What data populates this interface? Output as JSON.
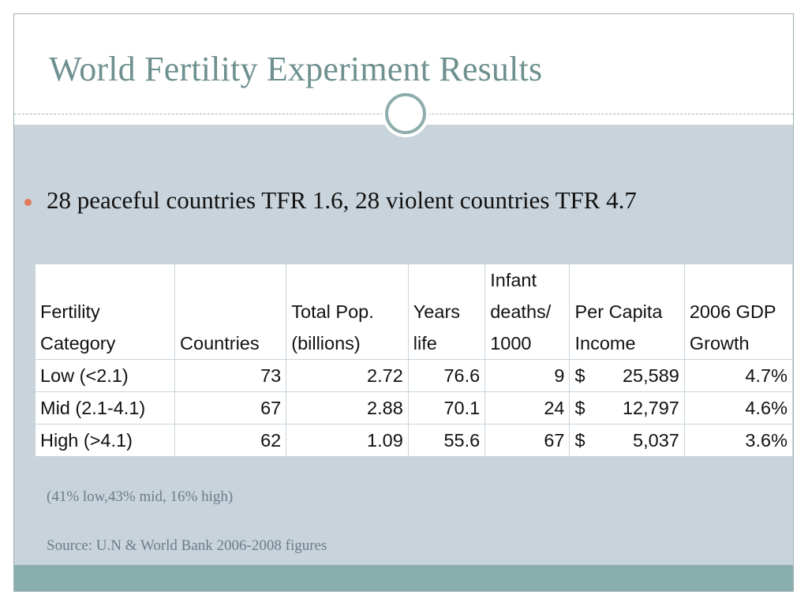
{
  "slide": {
    "title": "World Fertility Experiment Results",
    "bullet": "28 peaceful countries  TFR 1.6, 28 violent countries TFR 4.7",
    "note": "(41% low,43% mid, 16% high)",
    "source": "Source: U.N & World Bank 2006-2008 figures",
    "colors": {
      "title": "#6f9090",
      "content_background": "#c8d3db",
      "footer_band": "#8aadad",
      "bullet_dot": "#e07a5a"
    }
  },
  "table": {
    "headers": [
      [
        "Fertility",
        "Category"
      ],
      [
        "Countries"
      ],
      [
        "Total Pop.",
        "(billions)"
      ],
      [
        "Years",
        "life"
      ],
      [
        "Infant",
        "deaths/",
        "1000"
      ],
      [
        "Per Capita",
        "Income"
      ],
      [
        "2006 GDP",
        "Growth"
      ]
    ],
    "rows": [
      {
        "category": "Low (<2.1)",
        "countries": "73",
        "population": "2.72",
        "years_life": "76.6",
        "infant_deaths": "9",
        "currency": "$",
        "income": "25,589",
        "gdp_growth": "4.7%"
      },
      {
        "category": "Mid (2.1-4.1)",
        "countries": "67",
        "population": "2.88",
        "years_life": "70.1",
        "infant_deaths": "24",
        "currency": "$",
        "income": "12,797",
        "gdp_growth": "4.6%"
      },
      {
        "category": "High (>4.1)",
        "countries": "62",
        "population": "1.09",
        "years_life": "55.6",
        "infant_deaths": "67",
        "currency": "$",
        "income": "5,037",
        "gdp_growth": "3.6%"
      }
    ]
  }
}
